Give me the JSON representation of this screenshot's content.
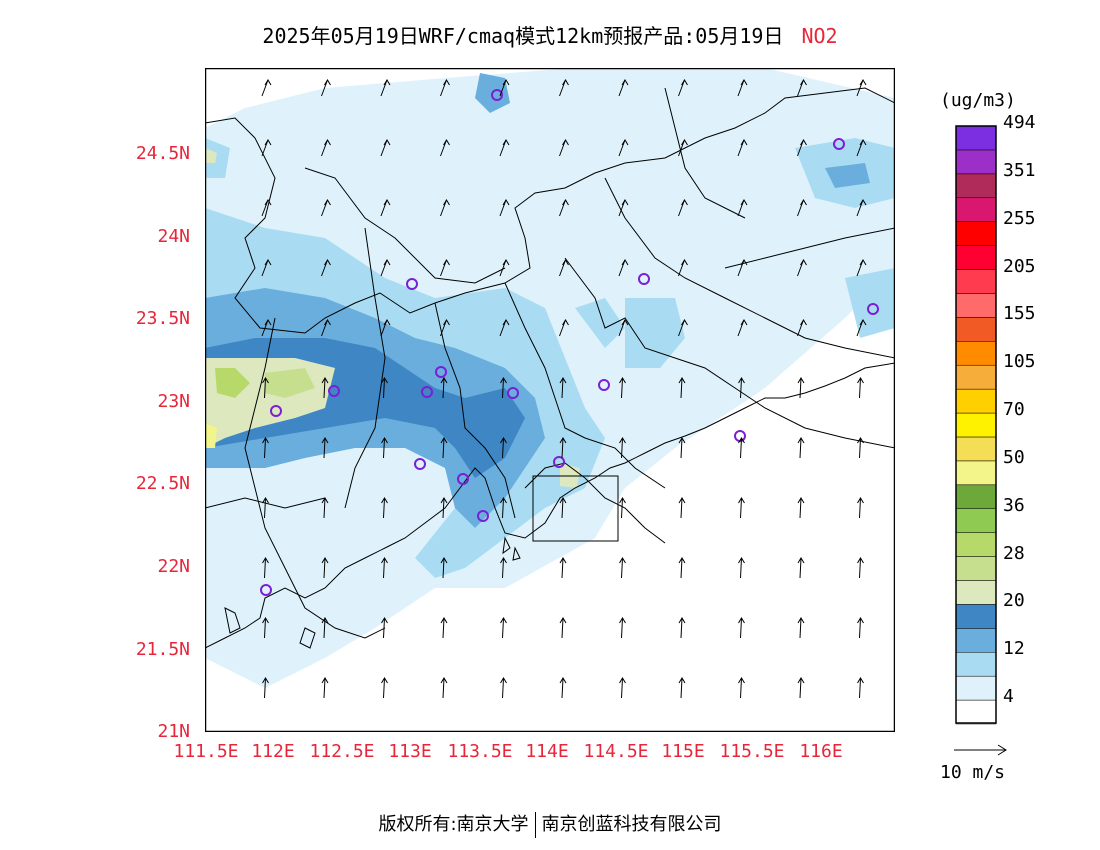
{
  "title": {
    "main": "2025年05月19日WRF/cmaq模式12km预报产品:05月19日",
    "pollutant": "NO2",
    "pollutant_color": "#e8263a"
  },
  "map": {
    "lat_ticks": [
      "24.5N",
      "24N",
      "23.5N",
      "23N",
      "22.5N",
      "22N",
      "21.5N",
      "21N"
    ],
    "lon_ticks": [
      "111.5E",
      "112E",
      "112.5E",
      "113E",
      "113.5E",
      "114E",
      "114.5E",
      "115E",
      "115.5E",
      "116E"
    ],
    "tick_color": "#e8263a",
    "stations": "purple circle markers",
    "station_color": "#7a1fd6",
    "wind": "north-south arrows across domain"
  },
  "colorbar": {
    "unit": "(ug/m3)",
    "colors": [
      "#ffffff",
      "#dff2fb",
      "#a9dcf2",
      "#6aaedd",
      "#3f87c4",
      "#dde8bf",
      "#c6df8f",
      "#b6d96a",
      "#8fca52",
      "#6da83a",
      "#f3f58a",
      "#f4de55",
      "#fff200",
      "#ffd000",
      "#f7ad3a",
      "#ff8c00",
      "#f15a24",
      "#ff6a6a",
      "#ff3b4f",
      "#ff0033",
      "#ff0000",
      "#d9176f",
      "#b02a5a",
      "#9b2fc7",
      "#7b2fe0"
    ],
    "labels": [
      "4",
      "12",
      "20",
      "28",
      "36",
      "50",
      "70",
      "105",
      "155",
      "205",
      "255",
      "351",
      "494"
    ]
  },
  "wind_legend": {
    "label": "10 m/s"
  },
  "footer": {
    "left": "版权所有:南京大学",
    "right": "南京创蓝科技有限公司"
  }
}
